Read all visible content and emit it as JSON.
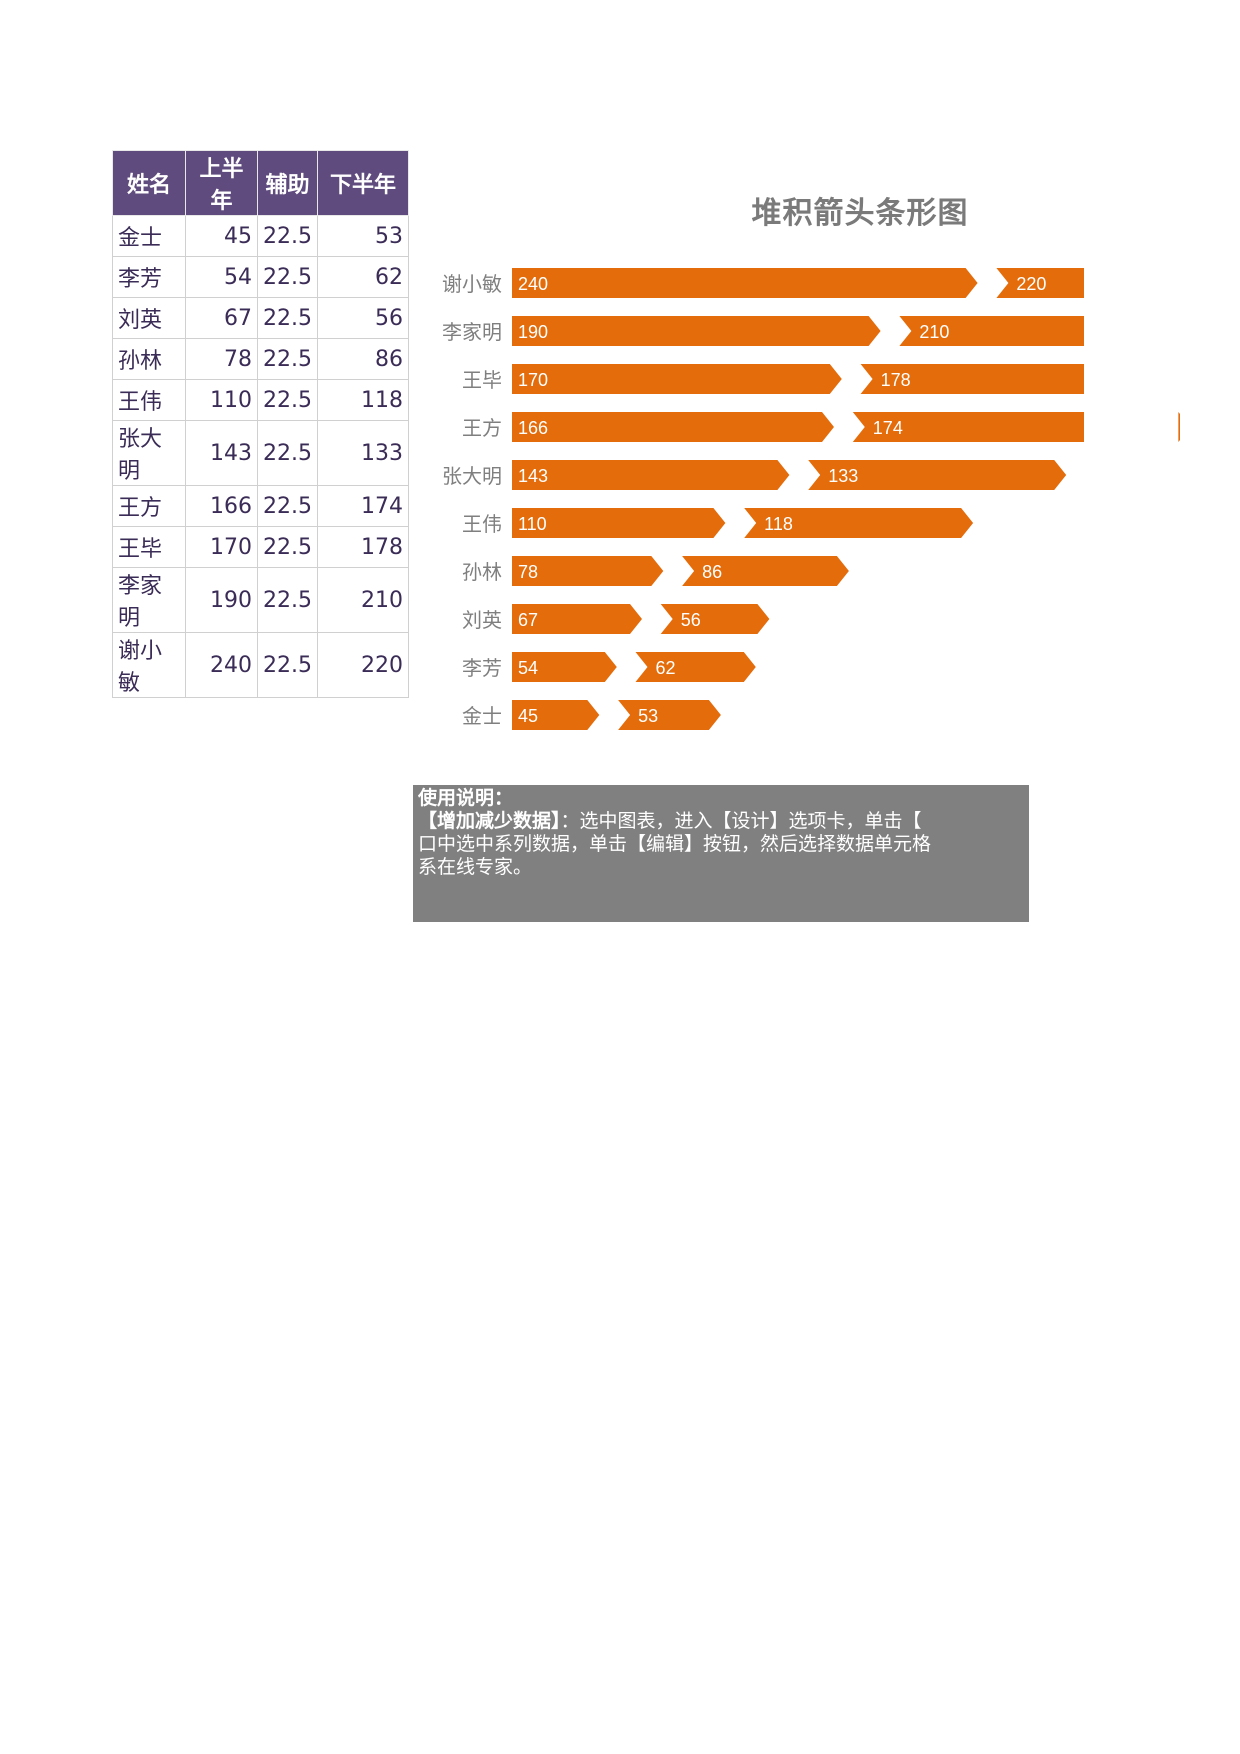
{
  "table": {
    "headers": [
      "姓名",
      "上半年",
      "辅助",
      "下半年"
    ],
    "rows": [
      {
        "name": "金士",
        "h1": "45",
        "aux": "22.5",
        "h2": "53"
      },
      {
        "name": "李芳",
        "h1": "54",
        "aux": "22.5",
        "h2": "62"
      },
      {
        "name": "刘英",
        "h1": "67",
        "aux": "22.5",
        "h2": "56"
      },
      {
        "name": "孙林",
        "h1": "78",
        "aux": "22.5",
        "h2": "86"
      },
      {
        "name": "王伟",
        "h1": "110",
        "aux": "22.5",
        "h2": "118"
      },
      {
        "name": "张大明",
        "h1": "143",
        "aux": "22.5",
        "h2": "133"
      },
      {
        "name": "王方",
        "h1": "166",
        "aux": "22.5",
        "h2": "174"
      },
      {
        "name": "王毕",
        "h1": "170",
        "aux": "22.5",
        "h2": "178"
      },
      {
        "name": "李家明",
        "h1": "190",
        "aux": "22.5",
        "h2": "210"
      },
      {
        "name": "谢小敏",
        "h1": "240",
        "aux": "22.5",
        "h2": "220"
      }
    ]
  },
  "chart_data": {
    "type": "bar",
    "orientation": "horizontal",
    "stacked": true,
    "title": "堆积箭头条形图",
    "categories": [
      "谢小敏",
      "李家明",
      "王毕",
      "王方",
      "张大明",
      "王伟",
      "孙林",
      "刘英",
      "李芳",
      "金士"
    ],
    "series": [
      {
        "values": [
          240,
          190,
          170,
          166,
          143,
          110,
          78,
          67,
          54,
          45
        ]
      },
      {
        "values": [
          22.5,
          22.5,
          22.5,
          22.5,
          22.5,
          22.5,
          22.5,
          22.5,
          22.5,
          22.5
        ],
        "hidden": true
      },
      {
        "values": [
          220,
          210,
          178,
          174,
          133,
          118,
          86,
          56,
          62,
          53
        ]
      }
    ],
    "xlim": [
      0,
      500
    ],
    "grid": false,
    "legend": "none",
    "colors": {
      "bar": "#e46c0a",
      "label": "#ffffff",
      "category_label": "#7f7f7f",
      "title": "#7a7a7a"
    }
  },
  "notes": {
    "heading": "使用说明：",
    "line1_bold": "【增加减少数据】",
    "line1_rest": "：选中图表，进入【设计】选项卡，单击【",
    "line2": "口中选中系列数据，单击【编辑】按钮，然后选择数据单元格",
    "line3": "系在线专家。"
  }
}
